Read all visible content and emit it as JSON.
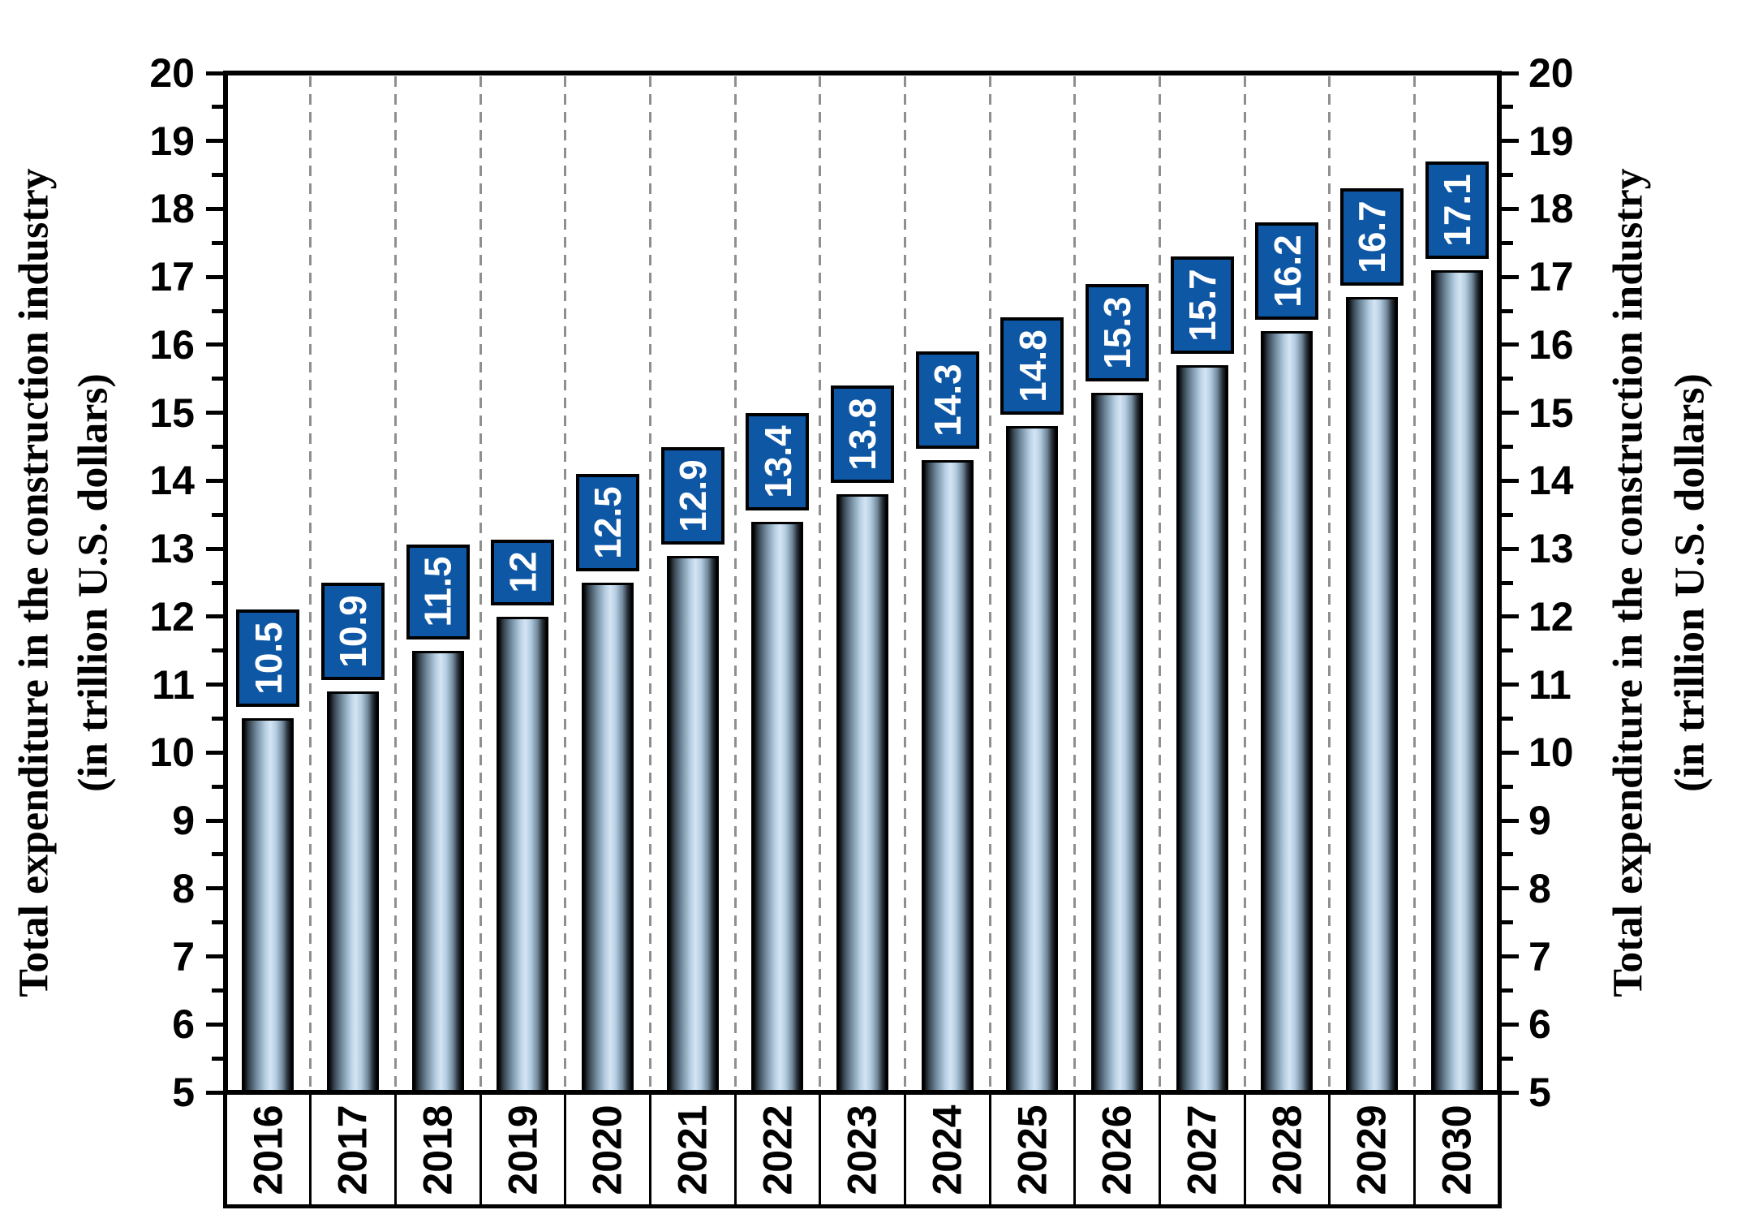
{
  "figure": {
    "y_axis_title_line1": "Total expenditure in the construction industry",
    "y_axis_title_line2": "(in trillion U.S. dollars)"
  },
  "chart_data": {
    "type": "bar",
    "categories": [
      "2016",
      "2017",
      "2018",
      "2019",
      "2020",
      "2021",
      "2022",
      "2023",
      "2024",
      "2025",
      "2026",
      "2027",
      "2028",
      "2029",
      "2030"
    ],
    "values": [
      10.5,
      10.9,
      11.5,
      12,
      12.5,
      12.9,
      13.4,
      13.8,
      14.3,
      14.8,
      15.3,
      15.7,
      16.2,
      16.7,
      17.1
    ],
    "value_labels": [
      "10.5",
      "10.9",
      "11.5",
      "12",
      "12.5",
      "12.9",
      "13.4",
      "13.8",
      "14.3",
      "14.8",
      "15.3",
      "15.7",
      "16.2",
      "16.7",
      "17.1"
    ],
    "title": "",
    "xlabel": "",
    "ylabel": "Total expenditure in the construction industry (in trillion U.S. dollars)",
    "ylim": [
      5,
      20
    ],
    "ytick_major_step": 1,
    "ytick_minor_step": 0.5,
    "ytick_labels": [
      "5",
      "6",
      "7",
      "8",
      "9",
      "10",
      "11",
      "12",
      "13",
      "14",
      "15",
      "16",
      "17",
      "18",
      "19",
      "20"
    ],
    "grid": "vertical dashed lines at category boundaries",
    "legend_position": "none",
    "duplicate_right_axis": true,
    "colors": {
      "value_label_bg": "#0E57A5",
      "value_label_text": "#FFFFFF",
      "bar_highlight": "#D4E5F4",
      "bar_mid": "#9FB8CC",
      "bar_edge": "#000000",
      "gridline": "#8F8F8F",
      "axis": "#000000",
      "background": "#FFFFFF"
    }
  }
}
